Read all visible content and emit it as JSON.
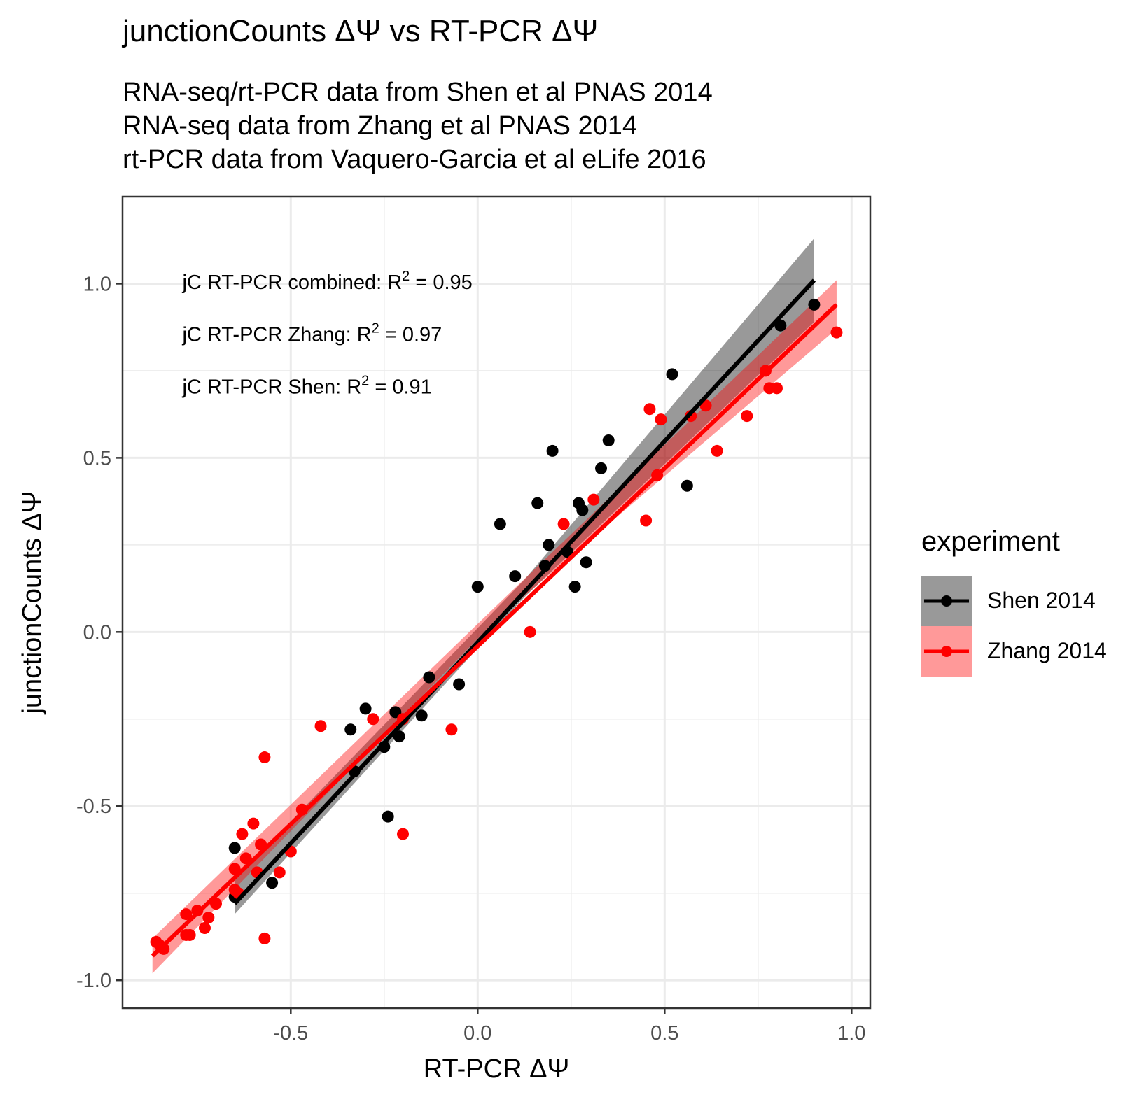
{
  "title": "junctionCounts ΔΨ vs RT-PCR ΔΨ",
  "subtitle_lines": [
    "RNA-seq/rt-PCR data from Shen et al PNAS 2014",
    "RNA-seq data from Zhang et al PNAS 2014",
    "rt-PCR data from Vaquero-Garcia et al eLife 2016"
  ],
  "legend": {
    "title": "experiment",
    "items": [
      {
        "label": "Shen 2014",
        "color": "#000000",
        "band": "#999999"
      },
      {
        "label": "Zhang 2014",
        "color": "#ff0000",
        "band": "#ff9999"
      }
    ]
  },
  "chart_data": {
    "type": "scatter",
    "title": "junctionCounts ΔΨ vs RT-PCR ΔΨ",
    "xlabel": "RT-PCR ΔΨ",
    "ylabel": "junctionCounts ΔΨ",
    "xlim": [
      -0.95,
      1.05
    ],
    "ylim": [
      -1.08,
      1.25
    ],
    "x_ticks": [
      "-0.5",
      "0.0",
      "0.5",
      "1.0"
    ],
    "x_tick_values": [
      -0.5,
      0.0,
      0.5,
      1.0
    ],
    "y_ticks": [
      "-1.0",
      "-0.5",
      "0.0",
      "0.5",
      "1.0"
    ],
    "y_tick_values": [
      -1.0,
      -0.5,
      0.0,
      0.5,
      1.0
    ],
    "grid": true,
    "legend_position": "right",
    "annotations": [
      {
        "prefix": "jC RT-PCR combined: R",
        "sup": "2",
        "suffix": " = 0.95",
        "x": -0.79,
        "y": 0.985
      },
      {
        "prefix": "jC RT-PCR Zhang: R",
        "sup": "2",
        "suffix": " = 0.97",
        "x": -0.79,
        "y": 0.835
      },
      {
        "prefix": "jC RT-PCR Shen: R",
        "sup": "2",
        "suffix": " = 0.91",
        "x": -0.79,
        "y": 0.685
      }
    ],
    "series": [
      {
        "name": "Shen 2014",
        "color": "#000000",
        "band_color": "#000000",
        "fit": {
          "x": [
            -0.65,
            0.9
          ],
          "y": [
            -0.78,
            1.01
          ]
        },
        "band": {
          "x": [
            -0.65,
            0.125,
            0.9
          ],
          "upper": [
            -0.71,
            0.15,
            1.13
          ],
          "lower": [
            -0.81,
            0.1,
            0.89
          ]
        },
        "points": [
          [
            0.9,
            0.94
          ],
          [
            0.81,
            0.88
          ],
          [
            0.52,
            0.74
          ],
          [
            0.2,
            0.52
          ],
          [
            0.35,
            0.55
          ],
          [
            0.33,
            0.47
          ],
          [
            0.56,
            0.42
          ],
          [
            0.27,
            0.37
          ],
          [
            0.28,
            0.35
          ],
          [
            0.16,
            0.37
          ],
          [
            0.06,
            0.31
          ],
          [
            0.19,
            0.25
          ],
          [
            0.24,
            0.23
          ],
          [
            0.18,
            0.19
          ],
          [
            0.29,
            0.2
          ],
          [
            0.1,
            0.16
          ],
          [
            0.26,
            0.13
          ],
          [
            0.0,
            0.13
          ],
          [
            -0.13,
            -0.13
          ],
          [
            -0.05,
            -0.15
          ],
          [
            -0.3,
            -0.22
          ],
          [
            -0.22,
            -0.23
          ],
          [
            -0.15,
            -0.24
          ],
          [
            -0.34,
            -0.28
          ],
          [
            -0.21,
            -0.3
          ],
          [
            -0.25,
            -0.33
          ],
          [
            -0.33,
            -0.4
          ],
          [
            -0.24,
            -0.53
          ],
          [
            -0.65,
            -0.62
          ],
          [
            -0.55,
            -0.72
          ],
          [
            -0.65,
            -0.76
          ]
        ]
      },
      {
        "name": "Zhang 2014",
        "color": "#ff0000",
        "band_color": "#ff0000",
        "fit": {
          "x": [
            -0.87,
            0.96
          ],
          "y": [
            -0.93,
            0.94
          ]
        },
        "band": {
          "x": [
            -0.87,
            0.045,
            0.96
          ],
          "upper": [
            -0.88,
            0.07,
            1.01
          ],
          "lower": [
            -0.98,
            0.03,
            0.87
          ]
        },
        "points": [
          [
            0.96,
            0.86
          ],
          [
            0.77,
            0.75
          ],
          [
            0.78,
            0.7
          ],
          [
            0.8,
            0.7
          ],
          [
            0.46,
            0.64
          ],
          [
            0.49,
            0.61
          ],
          [
            0.57,
            0.62
          ],
          [
            0.61,
            0.65
          ],
          [
            0.72,
            0.62
          ],
          [
            0.64,
            0.52
          ],
          [
            0.48,
            0.45
          ],
          [
            0.31,
            0.38
          ],
          [
            0.45,
            0.32
          ],
          [
            0.23,
            0.31
          ],
          [
            0.14,
            0.0
          ],
          [
            -0.07,
            -0.28
          ],
          [
            -0.2,
            -0.25
          ],
          [
            -0.28,
            -0.25
          ],
          [
            -0.42,
            -0.27
          ],
          [
            -0.57,
            -0.36
          ],
          [
            -0.47,
            -0.51
          ],
          [
            -0.5,
            -0.63
          ],
          [
            -0.58,
            -0.61
          ],
          [
            -0.6,
            -0.55
          ],
          [
            -0.63,
            -0.58
          ],
          [
            -0.62,
            -0.65
          ],
          [
            -0.59,
            -0.69
          ],
          [
            -0.53,
            -0.69
          ],
          [
            -0.65,
            -0.68
          ],
          [
            -0.2,
            -0.58
          ],
          [
            -0.57,
            -0.88
          ],
          [
            -0.65,
            -0.74
          ],
          [
            -0.64,
            -0.75
          ],
          [
            -0.7,
            -0.78
          ],
          [
            -0.75,
            -0.8
          ],
          [
            -0.78,
            -0.81
          ],
          [
            -0.72,
            -0.82
          ],
          [
            -0.73,
            -0.85
          ],
          [
            -0.77,
            -0.87
          ],
          [
            -0.78,
            -0.87
          ],
          [
            -0.86,
            -0.89
          ],
          [
            -0.85,
            -0.9
          ],
          [
            -0.84,
            -0.91
          ]
        ]
      }
    ]
  }
}
